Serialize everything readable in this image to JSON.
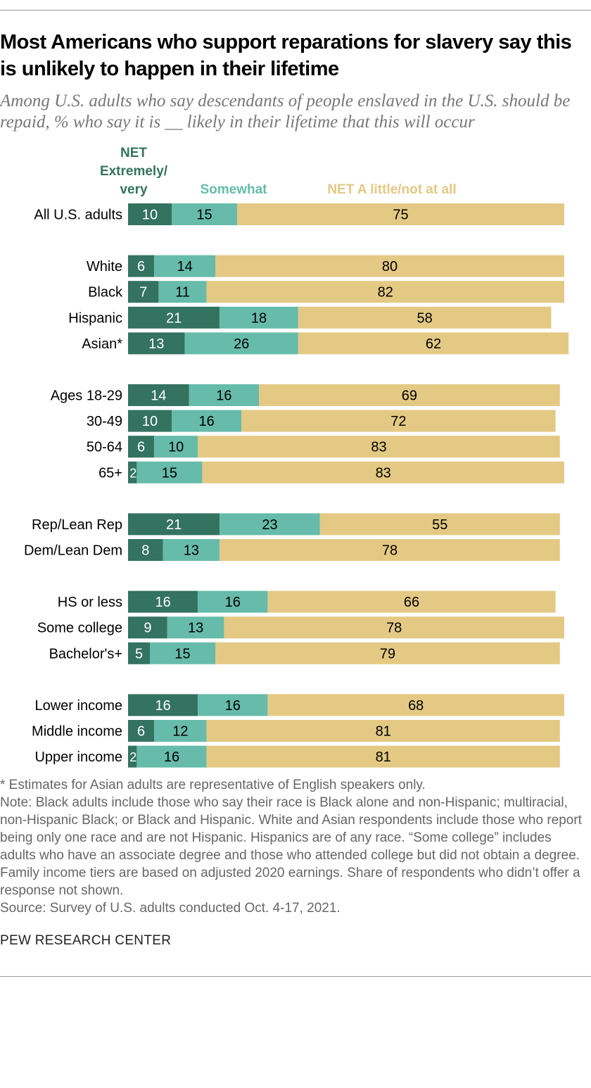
{
  "title": "Most Americans who support reparations for slavery say this is unlikely to happen in their lifetime",
  "subtitle": "Among U.S. adults who say descendants of people enslaved in the U.S. should be repaid, % who say it is __ likely in their lifetime that this will occur",
  "chart_data": {
    "type": "bar",
    "orientation": "horizontal-stacked",
    "series": [
      {
        "name": "NET Extremely/ very",
        "color": "#33735f"
      },
      {
        "name": "Somewhat",
        "color": "#66bbaa"
      },
      {
        "name": "NET A little/not at all",
        "color": "#e3c983"
      }
    ],
    "categories": [
      "All U.S. adults",
      "White",
      "Black",
      "Hispanic",
      "Asian*",
      "Ages 18-29",
      "30-49",
      "50-64",
      "65+",
      "Rep/Lean Rep",
      "Dem/Lean Dem",
      "HS or less",
      "Some college",
      "Bachelor's+",
      "Lower income",
      "Middle income",
      "Upper income"
    ],
    "groups": [
      0,
      1,
      1,
      1,
      1,
      2,
      2,
      2,
      2,
      3,
      3,
      4,
      4,
      4,
      5,
      5,
      5
    ],
    "values": [
      [
        10,
        15,
        75
      ],
      [
        6,
        14,
        80
      ],
      [
        7,
        11,
        82
      ],
      [
        21,
        18,
        58
      ],
      [
        13,
        26,
        62
      ],
      [
        14,
        16,
        69
      ],
      [
        10,
        16,
        72
      ],
      [
        6,
        10,
        83
      ],
      [
        2,
        15,
        83
      ],
      [
        21,
        23,
        55
      ],
      [
        8,
        13,
        78
      ],
      [
        16,
        16,
        66
      ],
      [
        9,
        13,
        78
      ],
      [
        5,
        15,
        79
      ],
      [
        16,
        16,
        68
      ],
      [
        6,
        12,
        81
      ],
      [
        2,
        16,
        81
      ]
    ],
    "xlim": [
      0,
      100
    ]
  },
  "notes": {
    "asterisk": "* Estimates for Asian adults are representative of English speakers only.",
    "note": "Note: Black adults include those who say their race is Black alone and non-Hispanic; multiracial, non-Hispanic Black; or Black and Hispanic. White and Asian respondents include those who report being only one race and are not Hispanic. Hispanics are of any race. “Some college” includes adults who have an associate degree and those who attended college but did not obtain a degree. Family income tiers are based on adjusted 2020 earnings. Share of respondents who didn’t offer a response not shown.",
    "source": "Source: Survey of U.S. adults conducted Oct. 4-17, 2021."
  },
  "logo": "PEW RESEARCH CENTER"
}
